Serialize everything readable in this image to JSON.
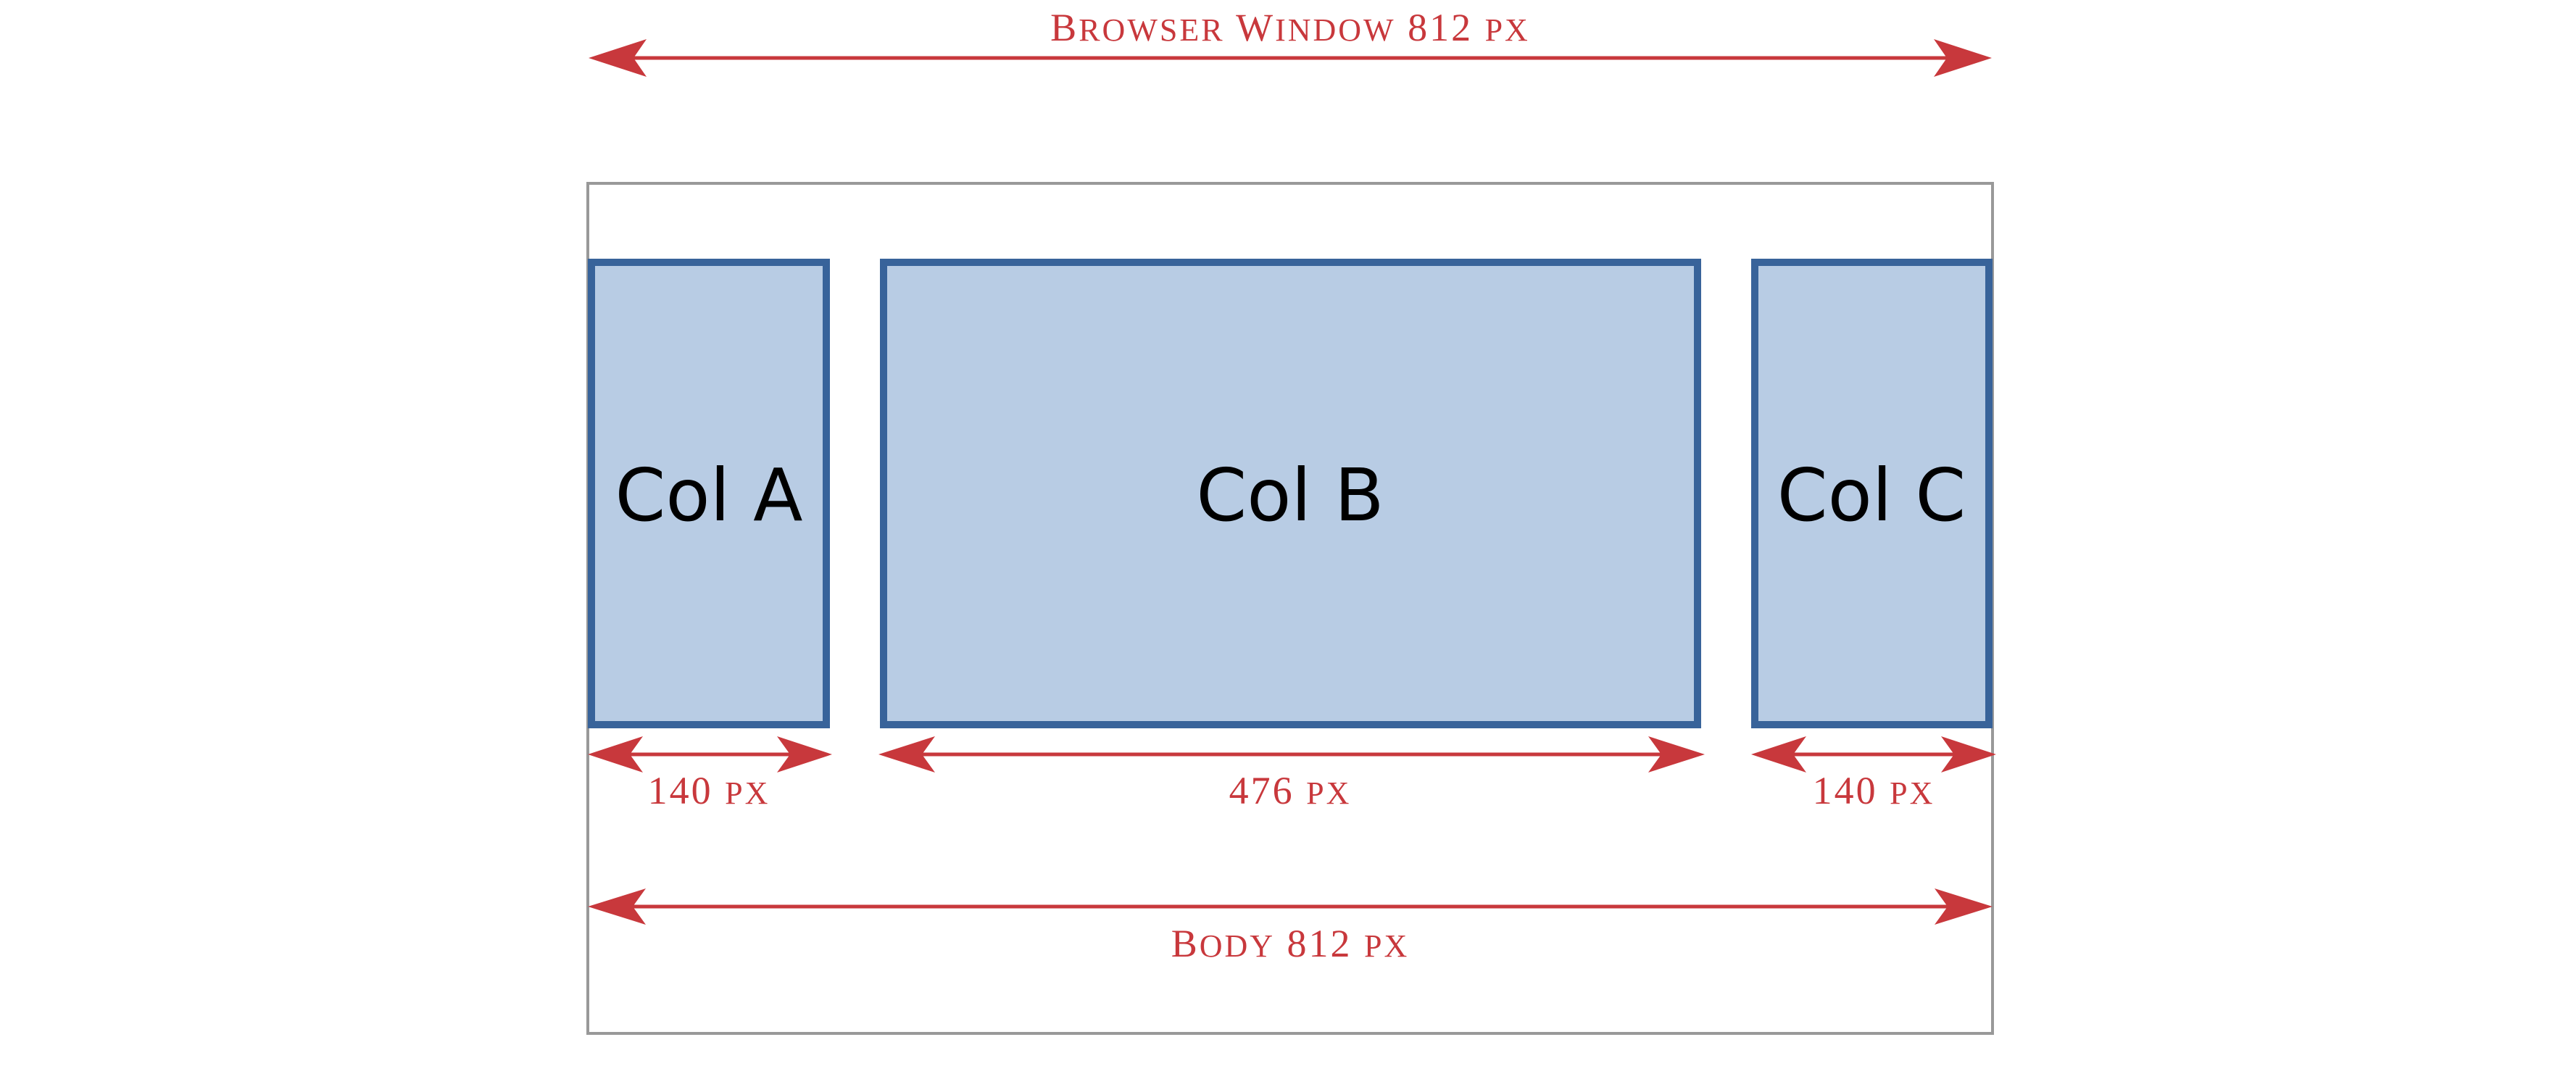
{
  "colors": {
    "dimension": "#c8383c",
    "column_fill": "#b8cce4",
    "column_border": "#38639a",
    "frame": "#999999"
  },
  "browser_window": {
    "word1": "B",
    "word1_rest": "ROWSER",
    "word2": "W",
    "word2_rest": "INDOW",
    "value": "812",
    "unit": "PX"
  },
  "columns": [
    {
      "label": "Col A",
      "width_value": "140",
      "unit": "PX"
    },
    {
      "label": "Col B",
      "width_value": "476",
      "unit": "PX"
    },
    {
      "label": "Col C",
      "width_value": "140",
      "unit": "PX"
    }
  ],
  "body_dimension": {
    "word": "B",
    "word_rest": "ODY",
    "value": "812",
    "unit": "PX"
  },
  "arrow_icon": "double-headed-arrow-icon"
}
